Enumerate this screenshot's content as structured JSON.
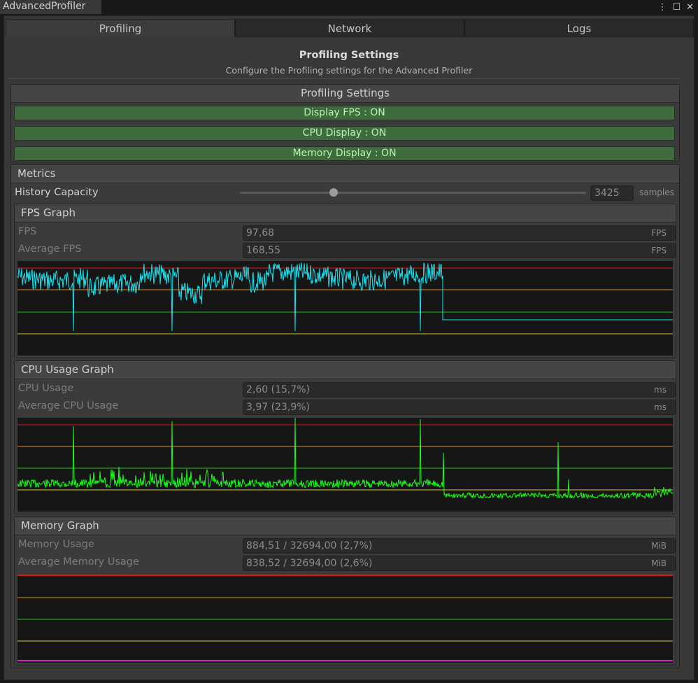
{
  "window": {
    "title": "AdvancedProfiler"
  },
  "tabs": [
    {
      "label": "Profiling"
    },
    {
      "label": "Network"
    },
    {
      "label": "Logs"
    }
  ],
  "header": {
    "title": "Profiling Settings",
    "subtitle": "Configure the Profiling settings for the Advanced Profiler"
  },
  "settings": {
    "title": "Profiling Settings",
    "toggles": [
      {
        "label": "Display FPS : ON"
      },
      {
        "label": "CPU Display : ON"
      },
      {
        "label": "Memory Display : ON"
      }
    ]
  },
  "metrics": {
    "title": "Metrics",
    "history": {
      "label": "History Capacity",
      "value": "3425",
      "unit": "samples",
      "slider_fraction": 0.27
    },
    "fps": {
      "title": "FPS Graph",
      "rows": [
        {
          "label": "FPS",
          "value": "97,68",
          "unit": "FPS"
        },
        {
          "label": "Average FPS",
          "value": "168,55",
          "unit": "FPS"
        }
      ]
    },
    "cpu": {
      "title": "CPU Usage Graph",
      "rows": [
        {
          "label": "CPU Usage",
          "value": "2,60 (15,7%)",
          "unit": "ms"
        },
        {
          "label": "Average CPU Usage",
          "value": "3,97 (23,9%)",
          "unit": "ms"
        }
      ]
    },
    "memory": {
      "title": "Memory Graph",
      "rows": [
        {
          "label": "Memory Usage",
          "value": "884,51 / 32694,00 (2,7%)",
          "unit": "MiB"
        },
        {
          "label": "Average Memory Usage",
          "value": "838,52 / 32694,00 (2,6%)",
          "unit": "MiB"
        }
      ]
    }
  },
  "colors": {
    "fps_line": "#18e4f0",
    "cpu_line": "#1aff1a",
    "memory_line": "#d020d0",
    "threshold_red": "#e01818",
    "threshold_orange": "#e08a2a",
    "threshold_green": "#1fbf1f",
    "threshold_yellow": "#d4cc2a",
    "toggle_on": "#3f6b3f"
  }
}
